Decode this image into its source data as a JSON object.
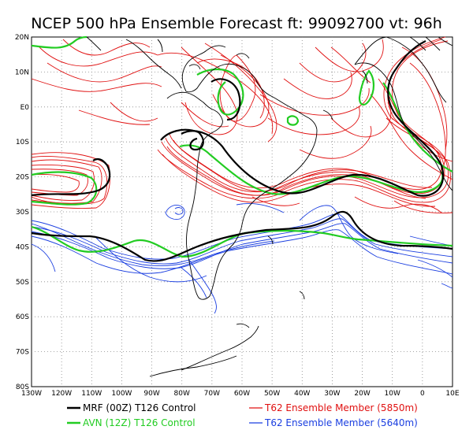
{
  "title": "NCEP 500 hPa Ensemble Forecast   ft: 99092700  vt: 96h",
  "map": {
    "lon_range": [
      -130,
      10
    ],
    "lat_range": [
      -80,
      20
    ],
    "lat_ticks": [
      "20N",
      "10N",
      "E0",
      "10S",
      "20S",
      "30S",
      "40S",
      "50S",
      "60S",
      "70S",
      "80S"
    ],
    "lon_ticks": [
      "130W",
      "120W",
      "110W",
      "100W",
      "90W",
      "80W",
      "70W",
      "60W",
      "50W",
      "40W",
      "30W",
      "20W",
      "10W",
      "0",
      "10E"
    ],
    "grid": "dotted"
  },
  "legend": [
    {
      "label": "MRF (00Z) T126 Control",
      "color": "#000000"
    },
    {
      "label": "AVN (12Z) T126 Control",
      "color": "#22cc22"
    },
    {
      "label": "T62 Ensemble Member (5850m)",
      "color": "#e01010"
    },
    {
      "label": "T62 Ensemble Member (5640m)",
      "color": "#1a3ee0"
    }
  ],
  "colors": {
    "mrf": "#000000",
    "avn": "#22cc22",
    "red_members": "#e01010",
    "blue_members": "#1a3ee0",
    "coast": "#000000",
    "grid": "#888888"
  }
}
